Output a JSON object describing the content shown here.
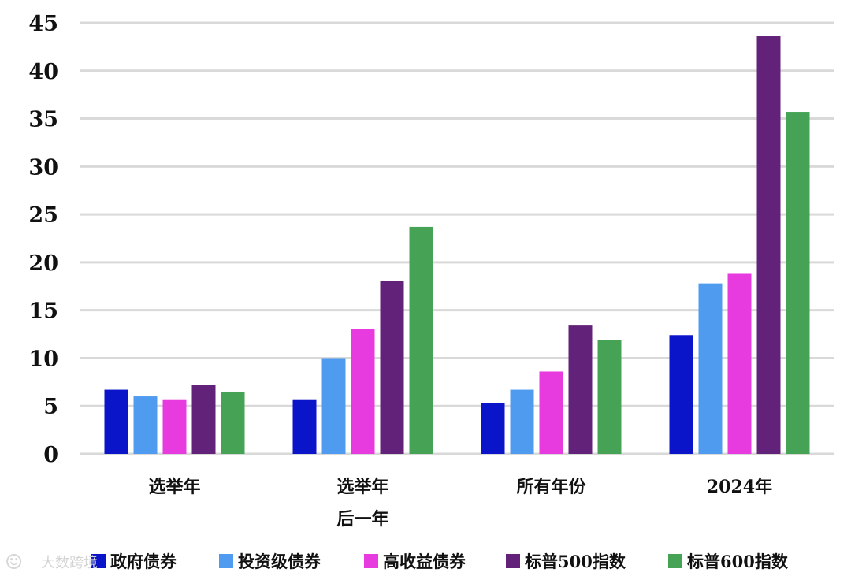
{
  "chart_data": {
    "type": "bar",
    "categories": [
      [
        "选举年"
      ],
      [
        "选举年",
        "后一年"
      ],
      [
        "所有年份"
      ],
      [
        "2024年"
      ]
    ],
    "series": [
      {
        "name": "政府债券",
        "color": "#0a14c8",
        "values": [
          6.7,
          5.7,
          5.3,
          12.4
        ]
      },
      {
        "name": "投资级债券",
        "color": "#4f9bf0",
        "values": [
          6.0,
          10.0,
          6.7,
          17.8
        ]
      },
      {
        "name": "高收益债券",
        "color": "#e83bdf",
        "values": [
          5.7,
          13.0,
          8.6,
          18.8
        ]
      },
      {
        "name": "标普500指数",
        "color": "#63227a",
        "values": [
          7.2,
          18.1,
          13.4,
          43.6
        ]
      },
      {
        "name": "标普600指数",
        "color": "#46a356",
        "values": [
          6.5,
          23.7,
          11.9,
          35.7
        ]
      }
    ],
    "yticks": [
      "0",
      "5",
      "10",
      "15",
      "20",
      "25",
      "30",
      "35",
      "40",
      "45"
    ],
    "ylim": [
      0,
      45
    ],
    "grid": true,
    "legend_position": "bottom"
  },
  "watermark": {
    "icon": "weibo-icon",
    "text": "大数跨境"
  }
}
